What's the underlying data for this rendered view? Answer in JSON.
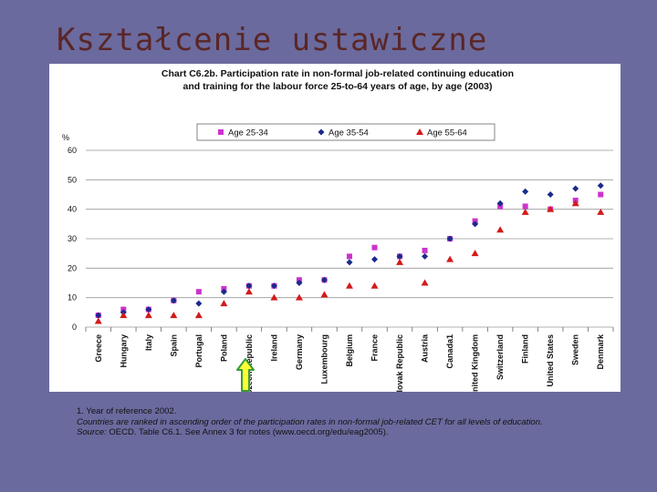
{
  "slide": {
    "title": "Kształcenie ustawiczne"
  },
  "colors": {
    "background": "#6b6a9e",
    "title_color": "#5a2626",
    "series_1": "#cc33cc",
    "series_2": "#1a2a8c",
    "series_3": "#d41a1a",
    "arrow_fill": "#ffff33",
    "arrow_stroke": "#3a9a3a"
  },
  "chart_data": {
    "type": "scatter",
    "title_line1": "Chart C6.2b. Participation rate in non-formal job-related continuing education",
    "title_line2": "and training for the labour force 25-to-64 years of age, by age (2003)",
    "ylabel": "%",
    "ylim": [
      0,
      60
    ],
    "yticks": [
      0,
      10,
      20,
      30,
      40,
      50,
      60
    ],
    "legend_position": "top",
    "categories": [
      "Greece",
      "Hungary",
      "Italy",
      "Spain",
      "Portugal",
      "Poland",
      "Czech Republic",
      "Ireland",
      "Germany",
      "Luxembourg",
      "Belgium",
      "France",
      "Slovak Republic",
      "Austria",
      "Canada1",
      "United Kingdom",
      "Switzerland",
      "Finland",
      "United States",
      "Sweden",
      "Denmark"
    ],
    "series": [
      {
        "name": "Age 25-34",
        "marker": "square",
        "values": [
          4,
          6,
          6,
          9,
          12,
          13,
          14,
          14,
          16,
          16,
          24,
          27,
          24,
          26,
          30,
          36,
          41,
          41,
          40,
          43,
          45
        ]
      },
      {
        "name": "Age 35-54",
        "marker": "diamond",
        "values": [
          4,
          5,
          6,
          9,
          8,
          12,
          14,
          14,
          15,
          16,
          22,
          23,
          24,
          24,
          30,
          35,
          42,
          46,
          45,
          47,
          48
        ]
      },
      {
        "name": "Age 55-64",
        "marker": "triangle",
        "values": [
          2,
          4,
          4,
          4,
          4,
          8,
          12,
          10,
          10,
          11,
          14,
          14,
          22,
          15,
          23,
          25,
          33,
          39,
          40,
          42,
          39
        ]
      }
    ]
  },
  "footnotes": {
    "line1": "1. Year of reference 2002.",
    "line2": "Countries are ranked in ascending order of the participation rates in non-formal job-related CET for all levels of education.",
    "source_label": "Source:",
    "source_text": "OECD. Table C6.1. See Annex 3 for notes (www.oecd.org/edu/eag2005)."
  }
}
